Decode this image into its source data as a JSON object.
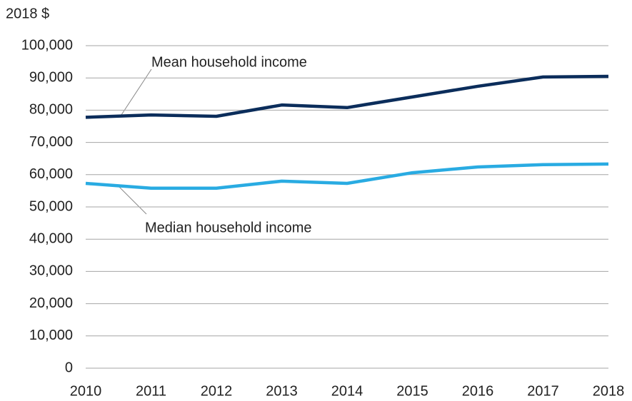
{
  "chart_data": {
    "type": "line",
    "y_axis_label": "2018 $",
    "categories": [
      "2010",
      "2011",
      "2012",
      "2013",
      "2014",
      "2015",
      "2016",
      "2017",
      "2018"
    ],
    "series": [
      {
        "name": "Mean household income",
        "color": "#0b2d5b",
        "values": [
          77800,
          78500,
          78100,
          81600,
          80800,
          84100,
          87400,
          90300,
          90500
        ]
      },
      {
        "name": "Median household income",
        "color": "#29abe2",
        "values": [
          57300,
          55800,
          55800,
          58000,
          57300,
          60600,
          62400,
          63100,
          63300
        ]
      }
    ],
    "ylim": [
      0,
      100000
    ],
    "yticks": [
      0,
      {
        "value": 10000,
        "label": "10,000"
      },
      {
        "value": 20000,
        "label": "20,000"
      },
      {
        "value": 30000,
        "label": "30,000"
      },
      {
        "value": 40000,
        "label": "40,000"
      },
      {
        "value": 50000,
        "label": "50,000"
      },
      {
        "value": 60000,
        "label": "60,000"
      },
      {
        "value": 70000,
        "label": "70,000"
      },
      {
        "value": 80000,
        "label": "80,000"
      },
      {
        "value": 90000,
        "label": "90,000"
      },
      {
        "value": 100000,
        "label": "100,000"
      }
    ],
    "grid": true
  }
}
